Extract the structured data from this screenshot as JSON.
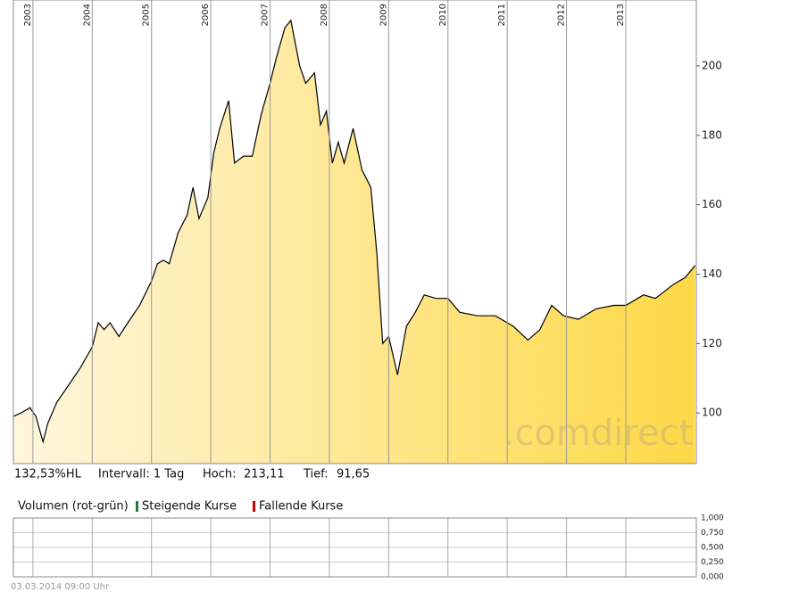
{
  "chart_data": [
    {
      "type": "line",
      "x": [
        2002.67,
        2002.8,
        2002.95,
        2003.05,
        2003.17,
        2003.25,
        2003.4,
        2003.6,
        2003.8,
        2004.0,
        2004.1,
        2004.2,
        2004.3,
        2004.45,
        2004.6,
        2004.8,
        2005.0,
        2005.1,
        2005.2,
        2005.3,
        2005.45,
        2005.6,
        2005.7,
        2005.8,
        2005.95,
        2006.05,
        2006.15,
        2006.3,
        2006.4,
        2006.55,
        2006.7,
        2006.85,
        2007.0,
        2007.1,
        2007.25,
        2007.35,
        2007.5,
        2007.6,
        2007.75,
        2007.85,
        2007.95,
        2008.05,
        2008.15,
        2008.25,
        2008.4,
        2008.55,
        2008.7,
        2008.8,
        2008.9,
        2009.0,
        2009.15,
        2009.3,
        2009.45,
        2009.6,
        2009.8,
        2010.0,
        2010.2,
        2010.5,
        2010.8,
        2011.1,
        2011.35,
        2011.55,
        2011.75,
        2011.95,
        2012.2,
        2012.5,
        2012.8,
        2013.0,
        2013.3,
        2013.5,
        2013.8,
        2014.0,
        2014.17
      ],
      "series": [
        {
          "color": "#000000",
          "values": [
            99,
            100,
            101.5,
            99,
            91.65,
            97,
            103,
            108,
            113,
            119,
            126,
            124,
            126,
            122,
            126,
            131,
            138,
            143,
            144,
            143,
            152,
            157,
            165,
            156,
            162,
            175,
            182,
            190,
            172,
            174,
            174,
            186,
            195,
            202,
            211,
            213.11,
            200,
            195,
            198,
            183,
            187,
            172,
            178,
            172,
            182,
            170,
            165,
            146,
            120,
            122,
            111,
            125,
            129,
            134,
            133,
            133,
            129,
            128,
            128,
            125,
            121,
            124,
            131,
            128,
            127,
            130,
            131,
            131,
            134,
            133,
            137,
            139,
            142.5
          ]
        }
      ],
      "fill_colors": [
        "#fff6de",
        "#fdd845"
      ],
      "xlim": [
        2002.67,
        2014.19
      ],
      "xticks": [
        2003,
        2004,
        2005,
        2006,
        2007,
        2008,
        2009,
        2010,
        2011,
        2012,
        2013
      ],
      "ylim": [
        85.4,
        219
      ],
      "yticks": [
        100,
        120,
        140,
        160,
        180,
        200
      ],
      "xgrid": true
    },
    {
      "type": "bar",
      "title": "Volumen (rot-grün)",
      "series": [
        {
          "name": "Steigende Kurse",
          "color": "#1e7b3c",
          "values": []
        },
        {
          "name": "Fallende Kurse",
          "color": "#cc0000",
          "values": []
        }
      ],
      "ylim": [
        0,
        1
      ],
      "yticks": [
        {
          "value": 1,
          "label": "1,000"
        },
        {
          "value": 0.75,
          "label": "0,750"
        },
        {
          "value": 0.5,
          "label": "0,500"
        },
        {
          "value": 0.25,
          "label": "0,250"
        },
        {
          "value": 0,
          "label": "0,000"
        }
      ]
    }
  ],
  "info": {
    "change": "132,53%HL",
    "interval": "Intervall: 1 Tag",
    "high_label": "Hoch:",
    "high": "213,11",
    "low_label": "Tief:",
    "low": "91,65"
  },
  "watermark": ".comdirect",
  "timestamp": "03.03.2014 09:00 Uhr"
}
